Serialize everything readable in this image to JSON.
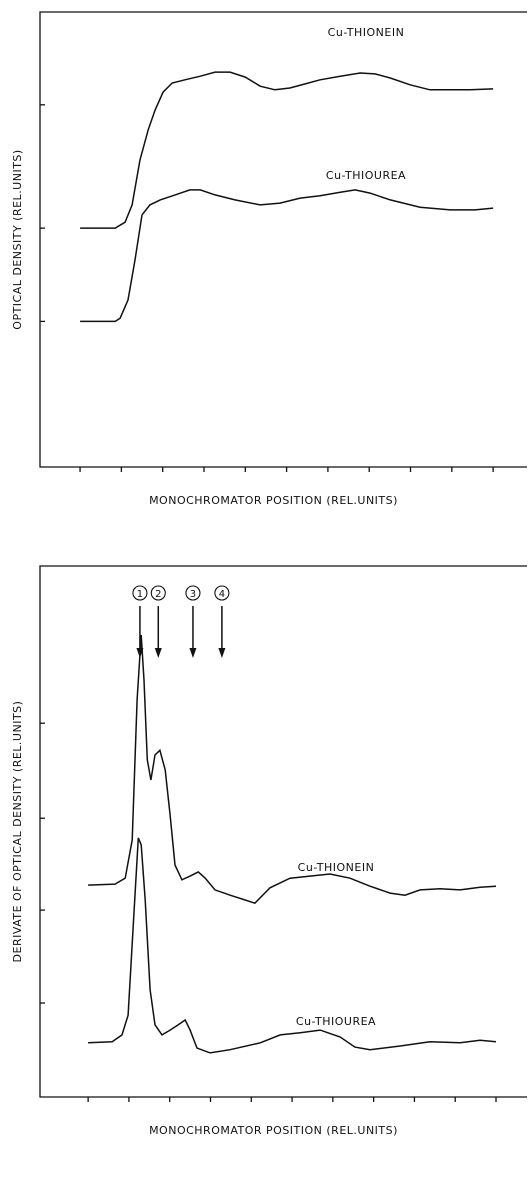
{
  "chart_data": [
    {
      "type": "line",
      "ylabel": "OPTICAL DENSITY (REL.UNITS)",
      "xlabel": "MONOCHROMATOR POSITION (REL.UNITS)",
      "xlim": [
        -0.97,
        10.82
      ],
      "ylim": [
        0,
        10
      ],
      "xticks": [
        0,
        1,
        2,
        3,
        4,
        5,
        6,
        7,
        8,
        9,
        10
      ],
      "yticks": [
        3.2,
        5.25,
        7.96
      ],
      "series": [
        {
          "name": "Cu-THIONEIN",
          "color": "#111111",
          "x": [
            0,
            0.85,
            1.09,
            1.26,
            1.45,
            1.65,
            1.82,
            2.01,
            2.23,
            2.54,
            2.91,
            3.27,
            3.63,
            4.0,
            4.36,
            4.72,
            5.08,
            5.45,
            5.81,
            6.3,
            6.78,
            7.14,
            7.51,
            7.99,
            8.47,
            8.96,
            9.44,
            10
          ],
          "values": [
            5.25,
            5.25,
            5.38,
            5.76,
            6.75,
            7.41,
            7.85,
            8.24,
            8.44,
            8.51,
            8.59,
            8.68,
            8.68,
            8.57,
            8.37,
            8.29,
            8.33,
            8.42,
            8.51,
            8.59,
            8.66,
            8.64,
            8.55,
            8.4,
            8.29,
            8.29,
            8.29,
            8.31
          ]
        },
        {
          "name": "Cu-THIOUREA",
          "color": "#111111",
          "x": [
            0,
            0.85,
            0.97,
            1.16,
            1.33,
            1.5,
            1.69,
            1.94,
            2.3,
            2.66,
            2.91,
            3.27,
            3.75,
            4.36,
            4.84,
            5.33,
            5.81,
            6.3,
            6.66,
            7.02,
            7.51,
            8.23,
            8.96,
            9.56,
            10
          ],
          "values": [
            3.2,
            3.2,
            3.27,
            3.67,
            4.55,
            5.54,
            5.76,
            5.87,
            5.98,
            6.09,
            6.09,
            5.98,
            5.87,
            5.76,
            5.8,
            5.91,
            5.96,
            6.04,
            6.09,
            6.02,
            5.87,
            5.71,
            5.65,
            5.65,
            5.69
          ]
        }
      ]
    },
    {
      "type": "line",
      "ylabel": "DERIVATE OF OPTICAL DENSITY (REL.UNITS)",
      "xlabel": "MONOCHROMATOR POSITION (REL.UNITS)",
      "xlim": [
        -1.18,
        10.76
      ],
      "ylim": [
        0,
        10
      ],
      "xticks": [
        0,
        1,
        2,
        3,
        4,
        5,
        6,
        7,
        8,
        9,
        10
      ],
      "yticks": [
        1.77,
        3.52,
        5.25,
        7.04
      ],
      "annotations": [
        {
          "label": "1",
          "x": 1.27
        },
        {
          "label": "2",
          "x": 1.72
        },
        {
          "label": "3",
          "x": 2.57
        },
        {
          "label": "4",
          "x": 3.28
        }
      ],
      "series": [
        {
          "name": "Cu-THIONEIN",
          "color": "#111111",
          "x": [
            0,
            0.66,
            0.91,
            1.08,
            1.2,
            1.3,
            1.37,
            1.45,
            1.54,
            1.64,
            1.76,
            1.89,
            2.01,
            2.13,
            2.3,
            2.5,
            2.7,
            2.87,
            3.11,
            3.48,
            3.85,
            4.09,
            4.46,
            4.95,
            5.44,
            5.93,
            6.42,
            6.91,
            7.4,
            7.77,
            8.14,
            8.63,
            9.12,
            9.61,
            10
          ],
          "values": [
            3.99,
            4.01,
            4.12,
            4.84,
            7.48,
            8.7,
            7.85,
            6.35,
            5.97,
            6.44,
            6.53,
            6.16,
            5.31,
            4.37,
            4.09,
            4.16,
            4.24,
            4.12,
            3.9,
            3.8,
            3.71,
            3.65,
            3.94,
            4.12,
            4.16,
            4.2,
            4.12,
            3.97,
            3.84,
            3.8,
            3.9,
            3.92,
            3.9,
            3.95,
            3.97
          ]
        },
        {
          "name": "Cu-THIOUREA",
          "color": "#111111",
          "x": [
            0,
            0.59,
            0.83,
            0.98,
            1.1,
            1.23,
            1.3,
            1.4,
            1.52,
            1.64,
            1.81,
            2.01,
            2.21,
            2.38,
            2.5,
            2.67,
            2.99,
            3.48,
            4.22,
            4.71,
            5.2,
            5.69,
            6.18,
            6.54,
            6.91,
            7.65,
            8.38,
            9.12,
            9.61,
            10
          ],
          "values": [
            1.02,
            1.04,
            1.17,
            1.54,
            3.15,
            4.88,
            4.75,
            3.71,
            2.02,
            1.36,
            1.17,
            1.26,
            1.36,
            1.45,
            1.26,
            0.92,
            0.83,
            0.89,
            1.02,
            1.17,
            1.21,
            1.26,
            1.13,
            0.94,
            0.89,
            0.96,
            1.04,
            1.02,
            1.07,
            1.04
          ]
        }
      ]
    }
  ]
}
